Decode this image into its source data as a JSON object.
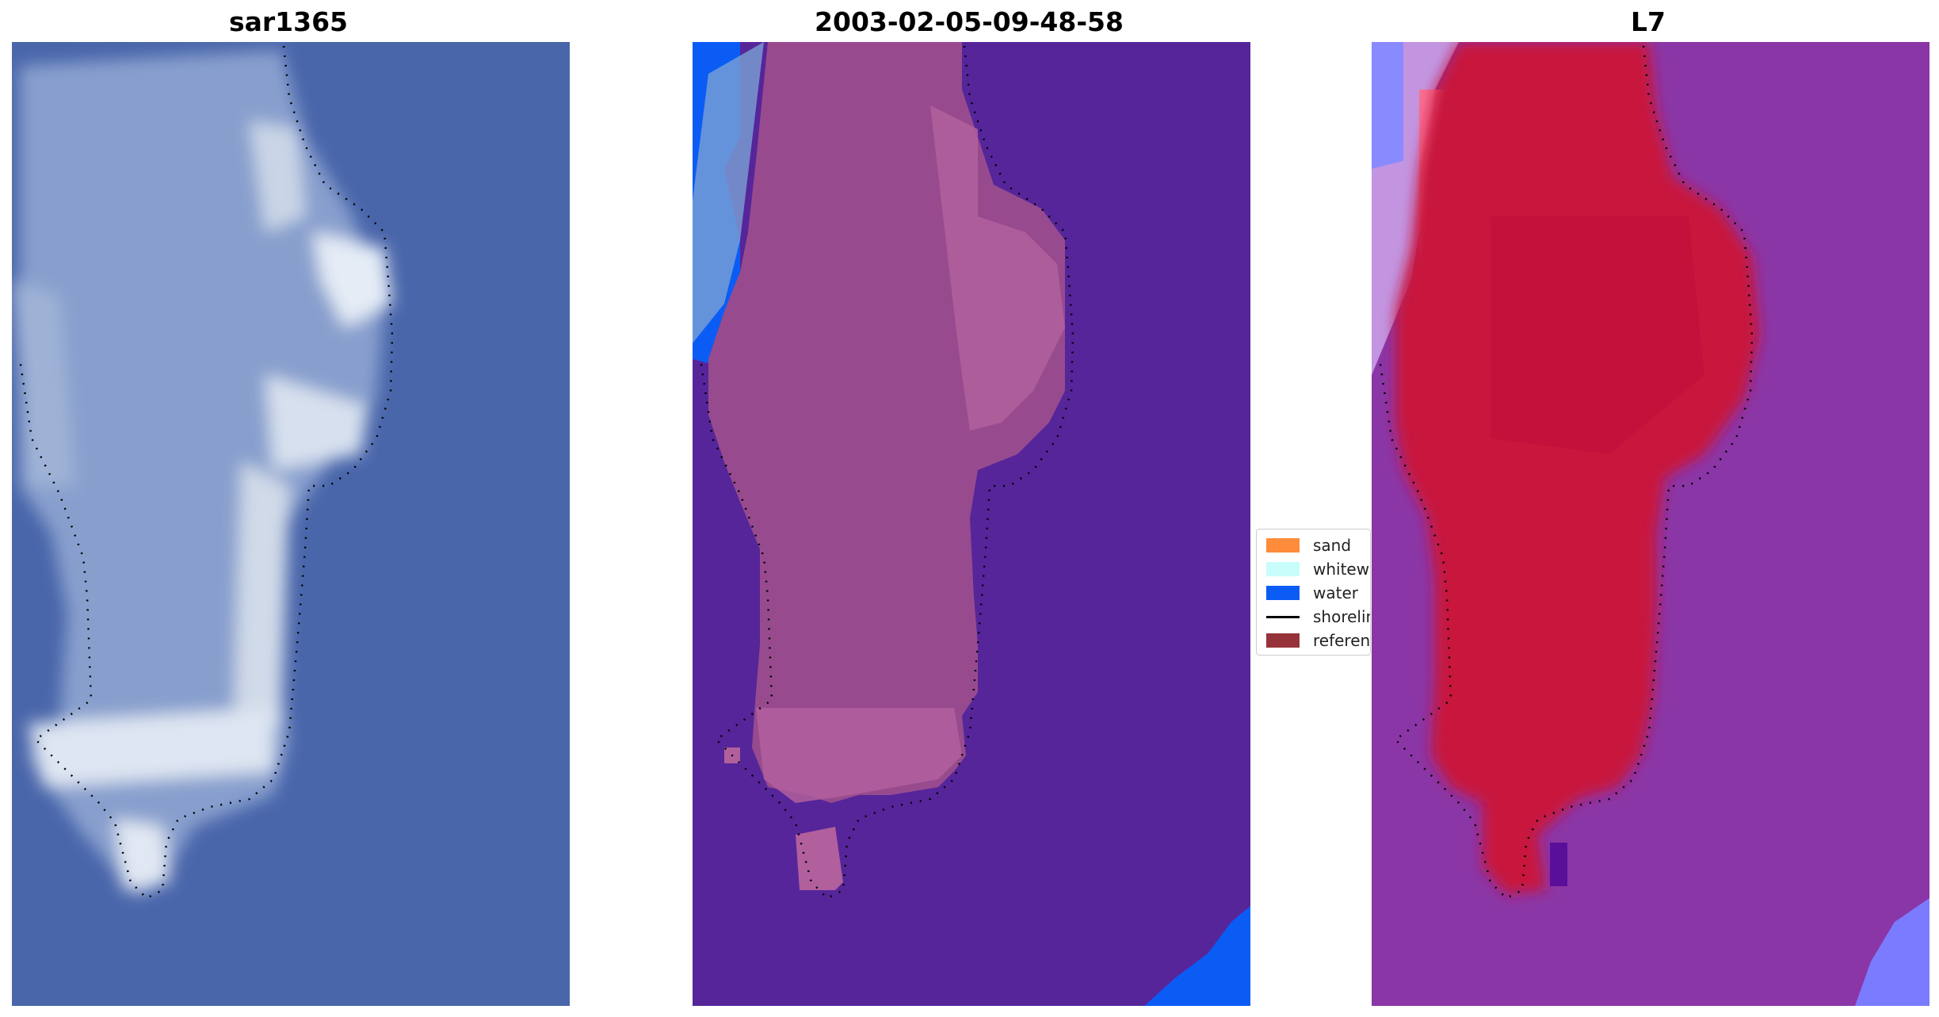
{
  "panels": [
    {
      "title": "sar1365"
    },
    {
      "title": "2003-02-05-09-48-58"
    },
    {
      "title": "L7"
    }
  ],
  "legend": {
    "items": [
      {
        "label": "sand",
        "color": "#ff8c3a",
        "kind": "patch"
      },
      {
        "label": "whitewater",
        "color": "#c8fdfb",
        "kind": "patch"
      },
      {
        "label": "water",
        "color": "#0b5cf5",
        "kind": "patch"
      },
      {
        "label": "shoreline",
        "color": "#000000",
        "kind": "line"
      },
      {
        "label": "reference",
        "color": "#96333a",
        "kind": "patch"
      }
    ]
  },
  "colors": {
    "ocean_rgb": "#4a66aa",
    "island_rgb": "#c9d6e8",
    "classified_water_bg": "#56259a",
    "classified_land": "#9b4e90",
    "classified_water_blue": "#0b5cf5",
    "mndwi_land": "#c8123e",
    "mndwi_water": "#8b36a6",
    "mndwi_edge": "#7b7bff"
  }
}
